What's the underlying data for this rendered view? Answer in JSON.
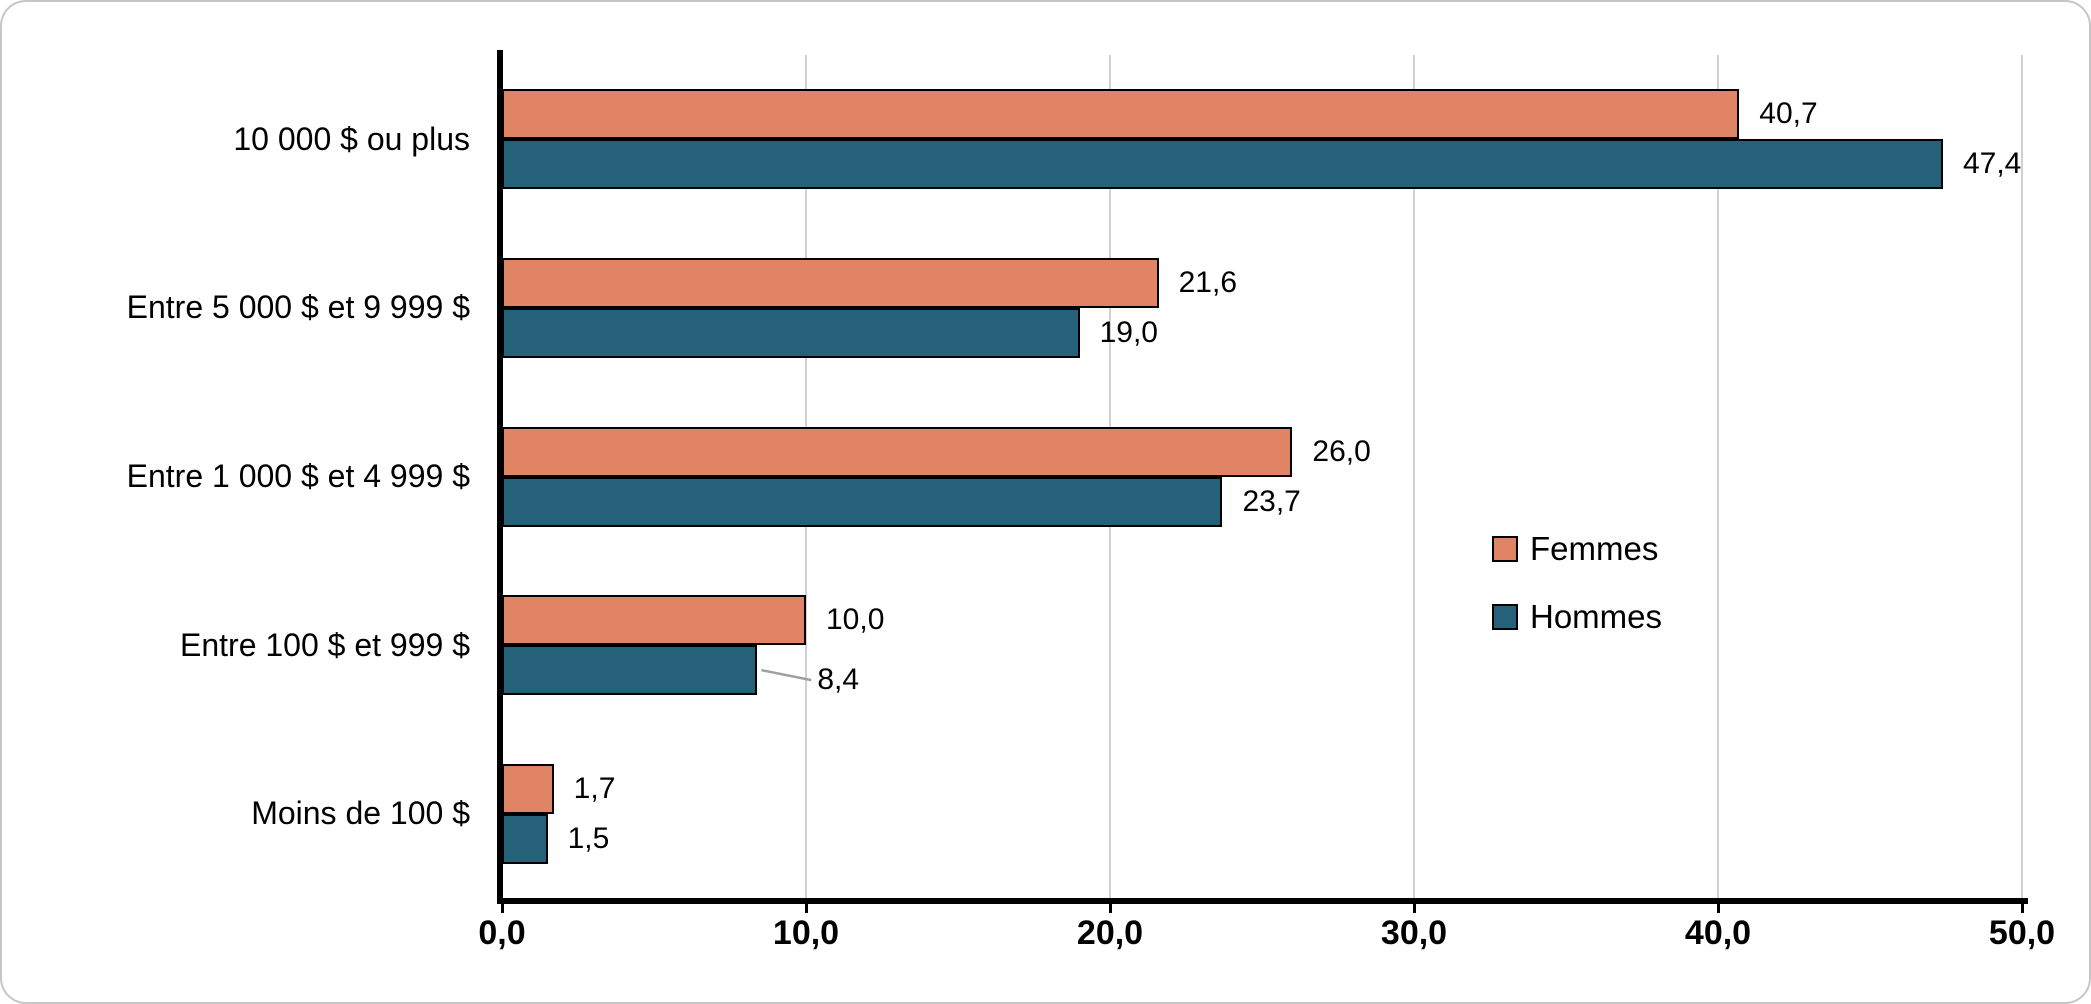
{
  "chart_data": {
    "type": "bar",
    "orientation": "horizontal",
    "categories": [
      "10 000 $ ou plus",
      "Entre 5 000 $ et 9 999 $",
      "Entre 1 000 $ et 4 999 $",
      "Entre 100 $ et 999 $",
      "Moins de 100 $"
    ],
    "series": [
      {
        "name": "Femmes",
        "color": "#E18365",
        "values": [
          40.7,
          21.6,
          26.0,
          10.0,
          1.7
        ],
        "labels": [
          "40,7",
          "21,6",
          "26,0",
          "10,0",
          "1,7"
        ]
      },
      {
        "name": "Hommes",
        "color": "#256279",
        "values": [
          47.4,
          19.0,
          23.7,
          8.4,
          1.5
        ],
        "labels": [
          "47,4",
          "19,0",
          "23,7",
          "8,4",
          "1,5"
        ]
      }
    ],
    "xlim": [
      0,
      50
    ],
    "xticks": [
      0,
      10,
      20,
      30,
      40,
      50
    ],
    "xtick_labels": [
      "0,0",
      "10,0",
      "20,0",
      "30,0",
      "40,0",
      "50,0"
    ],
    "grid": "vertical-major",
    "legend": {
      "position": "right-middle",
      "entries": [
        "Femmes",
        "Hommes"
      ]
    },
    "callout": {
      "series_index": 1,
      "point_index": 3
    },
    "colors": {
      "bar_border": "#000000",
      "gridline": "#d2d2d2",
      "axis": "#000000",
      "leader_line": "#a0a0a0"
    }
  }
}
